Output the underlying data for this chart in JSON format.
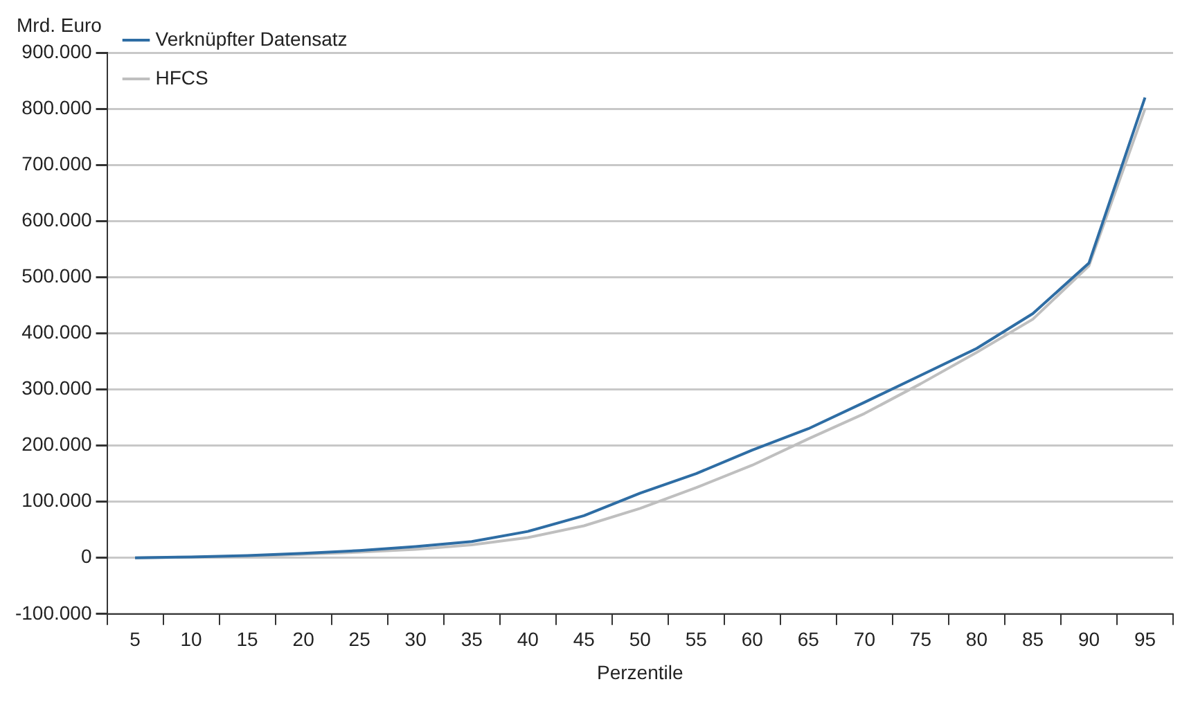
{
  "chart_data": {
    "type": "line",
    "ylabel": "Mrd. Euro",
    "xlabel": "Perzentile",
    "categories": [
      "5",
      "10",
      "15",
      "20",
      "25",
      "30",
      "35",
      "40",
      "45",
      "50",
      "55",
      "60",
      "65",
      "70",
      "75",
      "80",
      "85",
      "90",
      "95"
    ],
    "series": [
      {
        "name": "Verknüpfter Datensatz",
        "color": "#2e6da4",
        "values": [
          0,
          1500,
          4000,
          8000,
          13000,
          20000,
          29000,
          47000,
          75000,
          115000,
          150000,
          192000,
          230000,
          277000,
          325000,
          373000,
          435000,
          525000,
          820000
        ]
      },
      {
        "name": "HFCS",
        "color": "#bfbfbf",
        "values": [
          0,
          1000,
          3000,
          6000,
          10000,
          15000,
          23000,
          36000,
          57000,
          88000,
          125000,
          165000,
          212000,
          257000,
          310000,
          366000,
          425000,
          520000,
          800000
        ]
      }
    ],
    "ylim": [
      -100000,
      900000
    ],
    "yticks": [
      {
        "value": -100000,
        "label": "-100.000"
      },
      {
        "value": 0,
        "label": "0"
      },
      {
        "value": 100000,
        "label": "100.000"
      },
      {
        "value": 200000,
        "label": "200.000"
      },
      {
        "value": 300000,
        "label": "300.000"
      },
      {
        "value": 400000,
        "label": "400.000"
      },
      {
        "value": 500000,
        "label": "500.000"
      },
      {
        "value": 600000,
        "label": "600.000"
      },
      {
        "value": 700000,
        "label": "700.000"
      },
      {
        "value": 800000,
        "label": "800.000"
      },
      {
        "value": 900000,
        "label": "900.000"
      }
    ],
    "grid": "y",
    "legend": "top left",
    "marker": "none",
    "line_style": "solid"
  }
}
